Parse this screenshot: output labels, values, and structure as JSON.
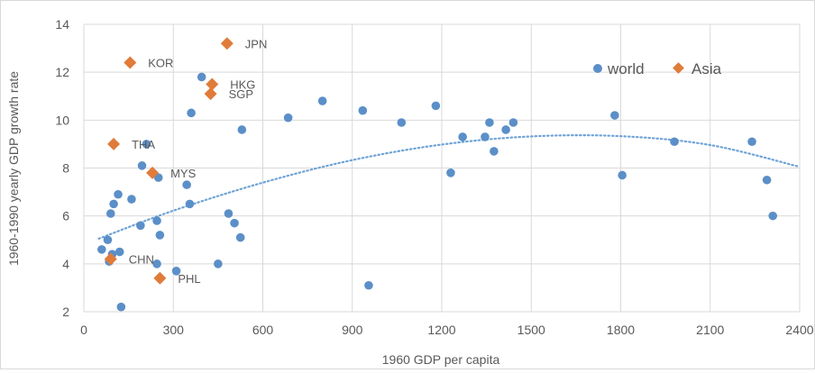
{
  "chart_data": {
    "type": "scatter",
    "title": "",
    "xlabel": "1960 GDP per capita",
    "ylabel": "1960-1990 yearly GDP growth rate",
    "xlim": [
      0,
      2400
    ],
    "ylim": [
      2,
      14
    ],
    "x_ticks": [
      0,
      300,
      600,
      900,
      1200,
      1500,
      1800,
      2100,
      2400
    ],
    "y_ticks": [
      2,
      4,
      6,
      8,
      10,
      12,
      14
    ],
    "grid": "on",
    "legend": "top-right",
    "legend_entries": [
      "world",
      "Asia"
    ],
    "colors": {
      "world": "#5b8fc8",
      "Asia": "#e07b3a",
      "trend": "#6fa3d6",
      "grid": "#d9d9d9",
      "text": "#595959"
    },
    "series": [
      {
        "name": "world",
        "marker": "circle",
        "points": [
          [
            60,
            4.6
          ],
          [
            80,
            5.0
          ],
          [
            85,
            4.1
          ],
          [
            90,
            6.1
          ],
          [
            100,
            6.5
          ],
          [
            95,
            4.4
          ],
          [
            115,
            6.9
          ],
          [
            120,
            4.5
          ],
          [
            125,
            2.2
          ],
          [
            160,
            6.7
          ],
          [
            190,
            5.6
          ],
          [
            195,
            8.1
          ],
          [
            210,
            9.0
          ],
          [
            245,
            4.0
          ],
          [
            245,
            5.8
          ],
          [
            250,
            7.6
          ],
          [
            255,
            5.2
          ],
          [
            310,
            3.7
          ],
          [
            345,
            7.3
          ],
          [
            355,
            6.5
          ],
          [
            360,
            10.3
          ],
          [
            395,
            11.8
          ],
          [
            450,
            4.0
          ],
          [
            485,
            6.1
          ],
          [
            505,
            5.7
          ],
          [
            525,
            5.1
          ],
          [
            530,
            9.6
          ],
          [
            685,
            10.1
          ],
          [
            800,
            10.8
          ],
          [
            935,
            10.4
          ],
          [
            955,
            3.1
          ],
          [
            1065,
            9.9
          ],
          [
            1180,
            10.6
          ],
          [
            1230,
            7.8
          ],
          [
            1270,
            9.3
          ],
          [
            1345,
            9.3
          ],
          [
            1360,
            9.9
          ],
          [
            1375,
            8.7
          ],
          [
            1415,
            9.6
          ],
          [
            1440,
            9.9
          ],
          [
            1780,
            10.2
          ],
          [
            1805,
            7.7
          ],
          [
            1980,
            9.1
          ],
          [
            2240,
            9.1
          ],
          [
            2290,
            7.5
          ],
          [
            2310,
            6.0
          ]
        ]
      },
      {
        "name": "Asia",
        "marker": "diamond",
        "points": [
          {
            "x": 155,
            "y": 12.4,
            "label": "KOR"
          },
          {
            "x": 480,
            "y": 13.2,
            "label": "JPN"
          },
          {
            "x": 430,
            "y": 11.5,
            "label": "HKG"
          },
          {
            "x": 425,
            "y": 11.1,
            "label": "SGP"
          },
          {
            "x": 100,
            "y": 9.0,
            "label": "THA"
          },
          {
            "x": 230,
            "y": 7.8,
            "label": "MYS"
          },
          {
            "x": 90,
            "y": 4.2,
            "label": "CHN"
          },
          {
            "x": 255,
            "y": 3.4,
            "label": "PHL"
          }
        ]
      }
    ],
    "trendline": {
      "type": "polynomial-2",
      "style": "dotted",
      "points": [
        [
          50,
          5.05
        ],
        [
          300,
          6.22
        ],
        [
          600,
          7.39
        ],
        [
          900,
          8.33
        ],
        [
          1200,
          8.98
        ],
        [
          1500,
          9.32
        ],
        [
          1800,
          9.33
        ],
        [
          2100,
          8.96
        ],
        [
          2400,
          8.05
        ]
      ]
    }
  }
}
